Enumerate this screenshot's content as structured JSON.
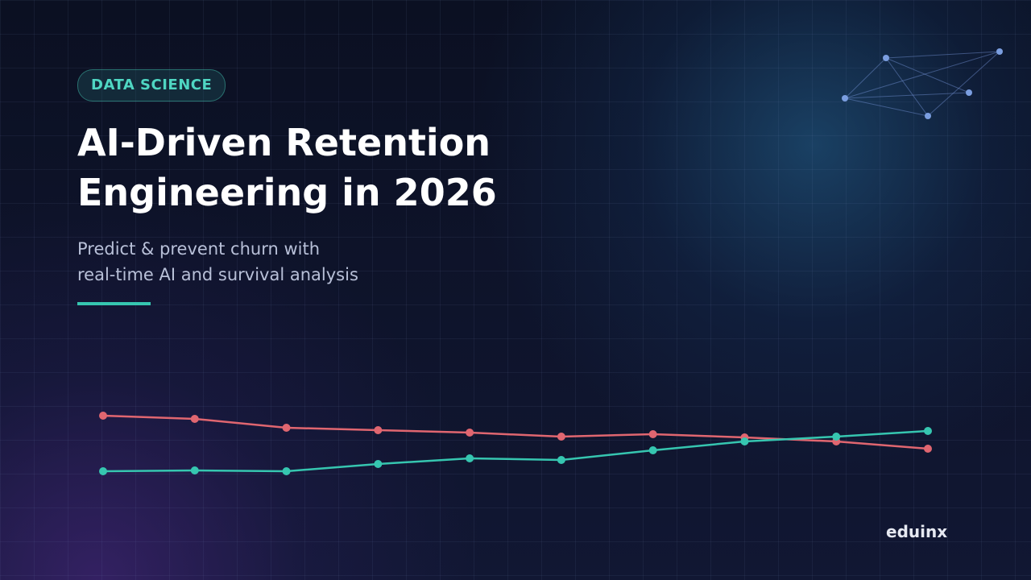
{
  "tag": "DATA SCIENCE",
  "title": [
    "AI-Driven Retention",
    "Engineering in 2026"
  ],
  "subtitle": [
    "Predict & prevent churn with",
    "real-time AI and survival analysis"
  ],
  "brand": "eduinx",
  "chart_data": {
    "type": "line",
    "categories": [
      null,
      null,
      null,
      null,
      null,
      null,
      null,
      null,
      null,
      null
    ],
    "series": [
      {
        "color": "#e06670",
        "values": [
          84,
          80,
          69,
          66,
          63,
          58,
          61,
          57,
          52,
          43
        ]
      },
      {
        "color": "#36c6b0",
        "values": [
          15,
          16,
          15,
          24,
          31,
          29,
          41,
          52,
          58,
          65
        ]
      }
    ],
    "ylim": [
      0,
      100
    ]
  }
}
